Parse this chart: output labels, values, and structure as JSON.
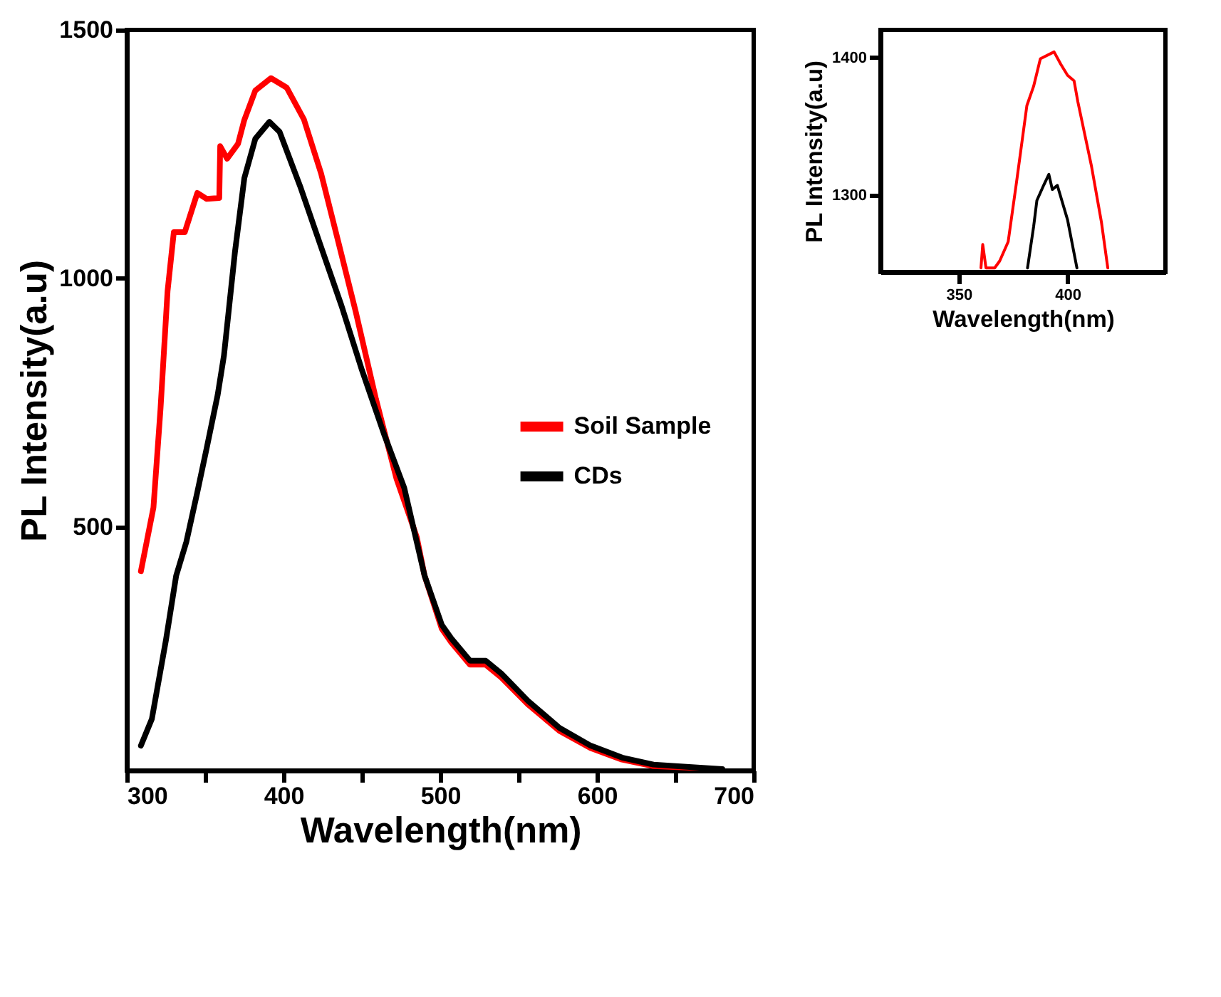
{
  "chart_data": [
    {
      "type": "line",
      "xlabel": "Wavelength(nm)",
      "ylabel": "PL Intensity(a.u)",
      "xlim": [
        300,
        700
      ],
      "ylim": [
        10,
        1500
      ],
      "xticks": [
        300,
        {
          "value": 350,
          "label": null
        },
        400,
        {
          "value": 450,
          "label": null
        },
        500,
        {
          "value": 550,
          "label": null
        },
        600,
        {
          "value": 650,
          "label": null
        },
        700
      ],
      "yticks": [
        500,
        1000,
        1500
      ],
      "legend": "right",
      "series": [
        {
          "name": "Soil Sample",
          "color": "#ff0000",
          "x": [
            309,
            317,
            321.5,
            326,
            330,
            337,
            345,
            351,
            359,
            359.6,
            364,
            371,
            375,
            382,
            392,
            402,
            413,
            424,
            435,
            446,
            459,
            472,
            485,
            490,
            501,
            507,
            519,
            529,
            539,
            556,
            576,
            596,
            616,
            636,
            664
          ],
          "values": [
            411,
            539,
            737,
            974,
            1093,
            1093,
            1172,
            1160,
            1162,
            1266,
            1241,
            1271,
            1319,
            1378,
            1403,
            1384,
            1320,
            1211,
            1073,
            934,
            757,
            598,
            480,
            402,
            295,
            268,
            223,
            223,
            197,
            143,
            90,
            55,
            32,
            19,
            15
          ]
        },
        {
          "name": "CDs",
          "color": "#000000",
          "x": [
            309,
            316,
            325,
            331.5,
            338,
            345,
            351,
            358,
            362,
            369,
            375,
            382,
            391,
            397.5,
            411,
            424,
            437,
            450,
            464,
            477,
            490,
            501,
            507,
            519,
            529,
            539,
            556,
            576,
            596,
            616,
            636,
            664,
            680
          ],
          "values": [
            60,
            114,
            273,
            402,
            470,
            570,
            659,
            766,
            845,
            1053,
            1202,
            1281,
            1315,
            1295,
            1182,
            1063,
            945,
            816,
            688,
            579,
            402,
            303,
            276,
            231,
            231,
            205,
            150,
            96,
            60,
            36,
            22,
            16,
            13
          ]
        }
      ]
    },
    {
      "type": "line",
      "xlabel": "Wavelength(nm)",
      "ylabel": "PL Intensity(a.u)",
      "xlim": [
        314,
        445
      ],
      "ylim": [
        1244,
        1420
      ],
      "xticks": [
        350,
        400
      ],
      "yticks": [
        1300,
        1400
      ],
      "series": [
        {
          "color": "#ff0000",
          "x": [
            360.2,
            361,
            362.5,
            366.5,
            368.8,
            372.7,
            376.6,
            381.3,
            384.4,
            387.5,
            393.8,
            396.9,
            400,
            403,
            404.7,
            411,
            415.6,
            418.5
          ],
          "values": [
            1247,
            1264,
            1247,
            1247,
            1252,
            1266,
            1310,
            1365,
            1379,
            1399,
            1404,
            1395,
            1387,
            1383,
            1368,
            1321,
            1280,
            1247
          ]
        },
        {
          "color": "#000000",
          "x": [
            381.6,
            384.4,
            385.9,
            389,
            391.4,
            393,
            395.3,
            400,
            404.3
          ],
          "values": [
            1247,
            1277,
            1296,
            1307,
            1315,
            1304,
            1307,
            1282,
            1247
          ]
        }
      ]
    }
  ]
}
